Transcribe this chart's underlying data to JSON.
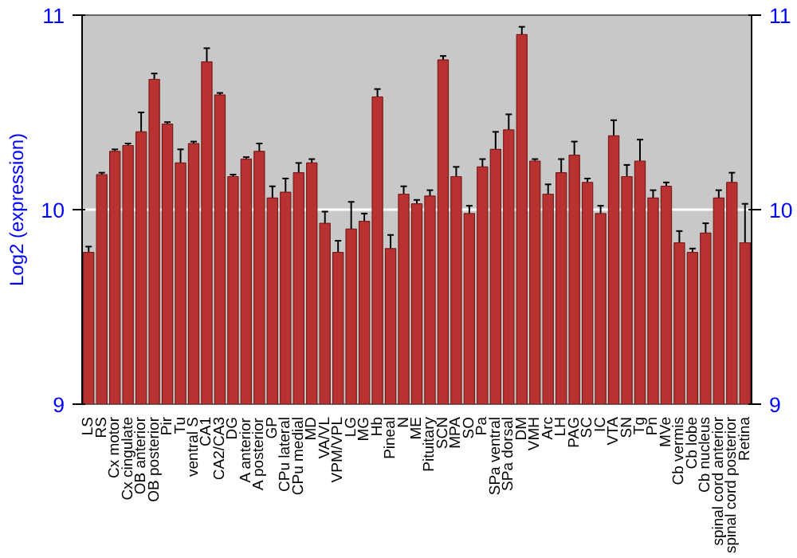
{
  "chart_data": {
    "type": "bar",
    "ylabel": "Log2 (expression)",
    "categories": [
      "LS",
      "RS",
      "Cx motor",
      "Cx cingulate",
      "OB anterior",
      "OB posterior",
      "Pir",
      "Tu",
      "ventral S",
      "CA1",
      "CA2/CA3",
      "DG",
      "A anterior",
      "A posterior",
      "GP",
      "CPu lateral",
      "CPu medial",
      "MD",
      "VA/VL",
      "VPM/VPL",
      "LG",
      "MG",
      "Hb",
      "Pineal",
      "N",
      "ME",
      "Pituitary",
      "SCN",
      "MPA",
      "SO",
      "Pa",
      "SPa ventral",
      "SPa dorsal",
      "DM",
      "VMH",
      "Arc",
      "LH",
      "PAG",
      "SC",
      "IC",
      "VTA",
      "SN",
      "Tg",
      "Pn",
      "MVe",
      "Cb vermis",
      "Cb lobe",
      "Cb nucleus",
      "spinal cord anterior",
      "spinal cord posterior",
      "Retina"
    ],
    "values": [
      9.78,
      10.18,
      10.3,
      10.33,
      10.4,
      10.67,
      10.44,
      10.24,
      10.34,
      10.76,
      10.59,
      10.17,
      10.26,
      10.3,
      10.06,
      10.09,
      10.19,
      10.24,
      9.93,
      9.78,
      9.9,
      9.94,
      10.58,
      9.8,
      10.08,
      10.03,
      10.07,
      10.77,
      10.17,
      9.98,
      10.22,
      10.31,
      10.41,
      10.9,
      10.25,
      10.08,
      10.19,
      10.28,
      10.14,
      9.98,
      10.38,
      10.17,
      10.25,
      10.06,
      10.12,
      9.83,
      9.78,
      9.88,
      10.06,
      10.14,
      9.83
    ],
    "errors": [
      0.03,
      0.01,
      0.01,
      0.01,
      0.1,
      0.03,
      0.01,
      0.07,
      0.01,
      0.07,
      0.01,
      0.01,
      0.01,
      0.04,
      0.06,
      0.07,
      0.05,
      0.02,
      0.06,
      0.06,
      0.14,
      0.04,
      0.04,
      0.07,
      0.04,
      0.02,
      0.03,
      0.02,
      0.05,
      0.04,
      0.04,
      0.09,
      0.08,
      0.04,
      0.01,
      0.05,
      0.07,
      0.07,
      0.02,
      0.04,
      0.08,
      0.06,
      0.11,
      0.04,
      0.02,
      0.06,
      0.02,
      0.05,
      0.04,
      0.05,
      0.2
    ],
    "color": "#b83232",
    "ylim": [
      9,
      11
    ],
    "yticks": [
      9,
      10,
      11
    ],
    "y2lim": [
      9,
      11
    ],
    "y2ticks": [
      9,
      10,
      11
    ],
    "grid": "y"
  }
}
